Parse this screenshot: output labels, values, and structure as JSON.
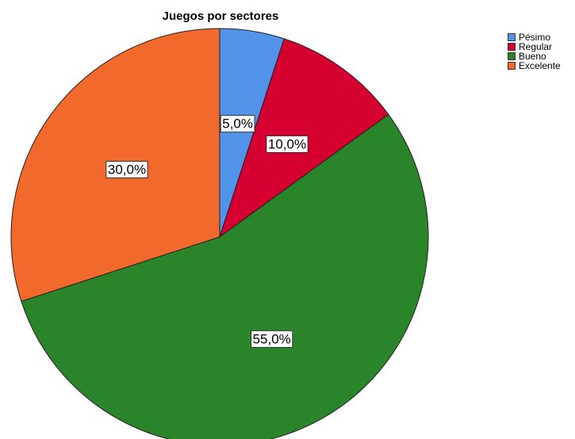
{
  "chart_data": {
    "type": "pie",
    "title": "Juegos por sectores",
    "categories": [
      "Pésimo",
      "Regular",
      "Bueno",
      "Excelente"
    ],
    "values": [
      5.0,
      10.0,
      55.0,
      30.0
    ],
    "labels": [
      "5,0%",
      "10,0%",
      "55,0%",
      "30,0%"
    ],
    "colors": [
      "#5193e8",
      "#d5002f",
      "#2a842a",
      "#f2692c"
    ],
    "legend_placement": "top-right"
  }
}
